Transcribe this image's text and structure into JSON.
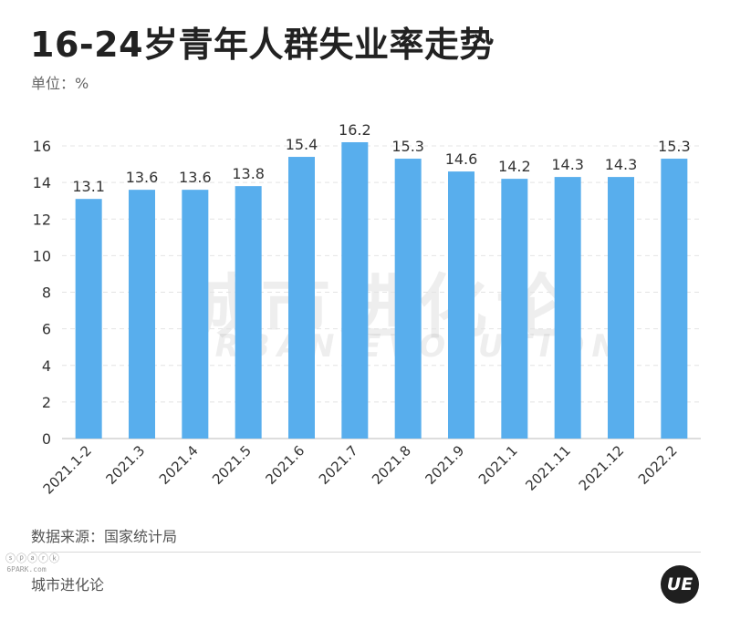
{
  "header": {
    "title": "16-24岁青年人群失业率走势",
    "unit": "单位：%"
  },
  "footer": {
    "source": "数据来源：国家统计局",
    "brand": "城市进化论",
    "logo_text": "UE",
    "site_cn": "ⓢⓟⓐⓡⓚ",
    "site_en": "6PARK.com"
  },
  "watermark": {
    "cn": "城市进化论",
    "en": "URBAN EVOLUTION"
  },
  "colors": {
    "bar": "#58aeed",
    "grid": "#e4e4e4",
    "axis": "#bbbbbb",
    "text": "#333333"
  },
  "chart_data": {
    "type": "bar",
    "title": "16-24岁青年人群失业率走势",
    "ylabel": "单位：%",
    "xlabel": "",
    "ylim": [
      0,
      16
    ],
    "yticks": [
      0,
      2,
      4,
      6,
      8,
      10,
      12,
      14,
      16
    ],
    "grid": true,
    "categories": [
      "2021.1-2",
      "2021.3",
      "2021.4",
      "2021.5",
      "2021.6",
      "2021.7",
      "2021.8",
      "2021.9",
      "2021.1",
      "2021.11",
      "2021.12",
      "2022.2"
    ],
    "values": [
      13.1,
      13.6,
      13.6,
      13.8,
      15.4,
      16.2,
      15.3,
      14.6,
      14.2,
      14.3,
      14.3,
      15.3
    ],
    "labels": [
      "13.1",
      "13.6",
      "13.6",
      "13.8",
      "15.4",
      "16.2",
      "15.3",
      "14.6",
      "14.2",
      "14.3",
      "14.3",
      "15.3"
    ]
  }
}
